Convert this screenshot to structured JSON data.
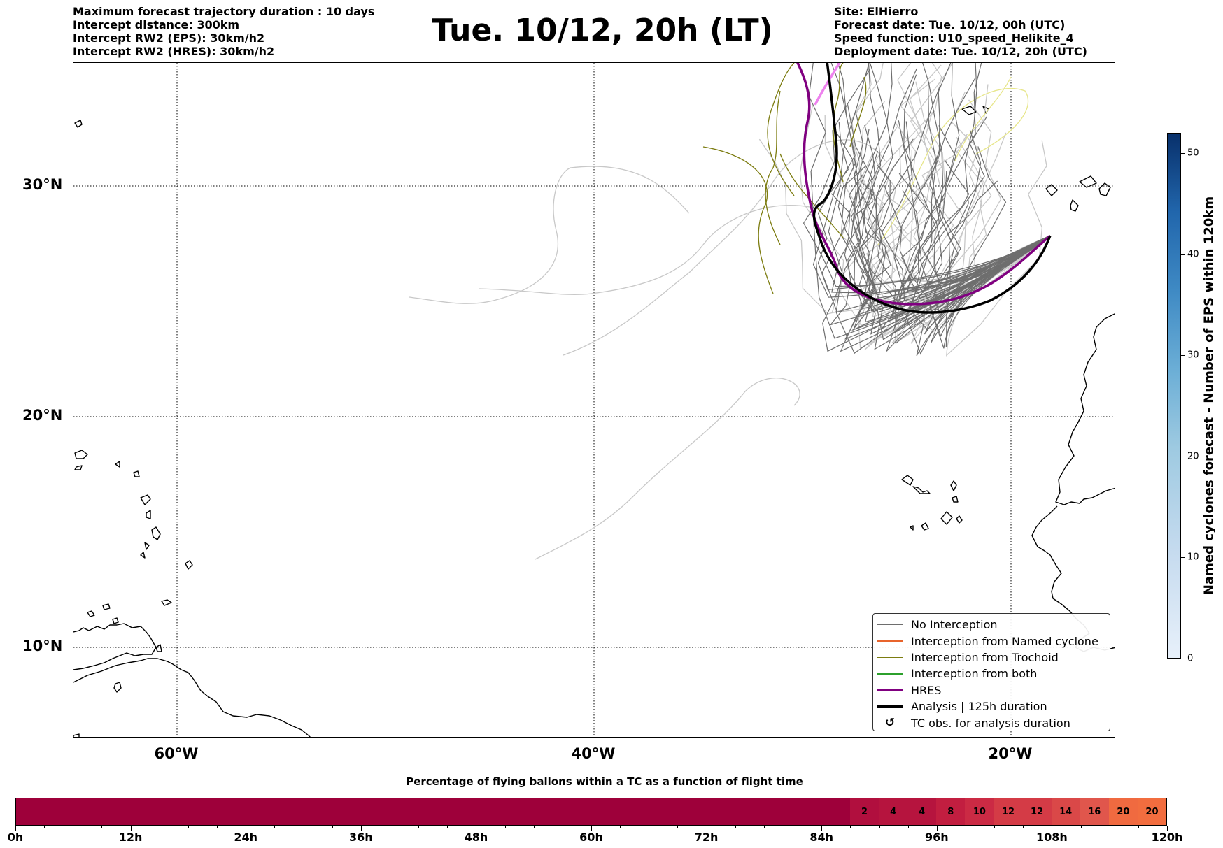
{
  "header": {
    "left_lines": [
      "Maximum forecast trajectory duration : 10 days",
      "Intercept distance: 300km",
      "Intercept RW2 (EPS):  30km/h2",
      "Intercept RW2 (HRES): 30km/h2"
    ],
    "title": "Tue. 10/12, 20h (LT)",
    "right_lines": [
      "Site: ElHierro",
      "Forecast date: Tue. 10/12, 00h (UTC)",
      "Speed function: U10_speed_Helikite_4",
      "Deployment date: Tue. 10/12, 20h (UTC)"
    ]
  },
  "map": {
    "lat_labels": [
      "30°N",
      "20°N",
      "10°N"
    ],
    "lon_labels": [
      "60°W",
      "40°W",
      "20°W"
    ],
    "site": "ElHierro"
  },
  "legend": {
    "items": [
      {
        "label": "No Interception",
        "color": "#6e6e6e",
        "kind": "thin"
      },
      {
        "label": "Interception from Named cyclone",
        "color": "#e8642c",
        "kind": "thin"
      },
      {
        "label": "Interception from Trochoid",
        "color": "#7c7c10",
        "kind": "thin"
      },
      {
        "label": "Interception from both",
        "color": "#2ca02c",
        "kind": "thin"
      },
      {
        "label": "HRES",
        "color": "#800080",
        "kind": "thick"
      },
      {
        "label": "Analysis | 125h duration",
        "color": "#000000",
        "kind": "thick"
      },
      {
        "label": "TC obs. for analysis duration",
        "color": "#000000",
        "kind": "symbol",
        "symbol": "↺"
      }
    ]
  },
  "colorbar": {
    "title": "Named cyclones forecast - Number of EPS within 120km",
    "min": 0,
    "max": 52,
    "ticks": [
      "0",
      "10",
      "20",
      "30",
      "40",
      "50"
    ],
    "color_low": "#e7f0fa",
    "color_high": "#08306b"
  },
  "tc_bar": {
    "title": "Percentage of flying ballons within a TC as a function of flight time",
    "hours_max": 120,
    "tick_labels": [
      "0h",
      "12h",
      "24h",
      "36h",
      "48h",
      "60h",
      "72h",
      "84h",
      "96h",
      "108h",
      "120h"
    ],
    "base_color": "#9e003a",
    "cells": [
      {
        "label": "2",
        "color": "#b10f3e"
      },
      {
        "label": "4",
        "color": "#b6143e"
      },
      {
        "label": "4",
        "color": "#b6143e"
      },
      {
        "label": "8",
        "color": "#c21e40"
      },
      {
        "label": "10",
        "color": "#cb2a44"
      },
      {
        "label": "12",
        "color": "#d43b46"
      },
      {
        "label": "12",
        "color": "#d43b46"
      },
      {
        "label": "14",
        "color": "#da4848"
      },
      {
        "label": "16",
        "color": "#e0564c"
      },
      {
        "label": "20",
        "color": "#f06a40"
      },
      {
        "label": "20",
        "color": "#f26d3f"
      }
    ]
  }
}
